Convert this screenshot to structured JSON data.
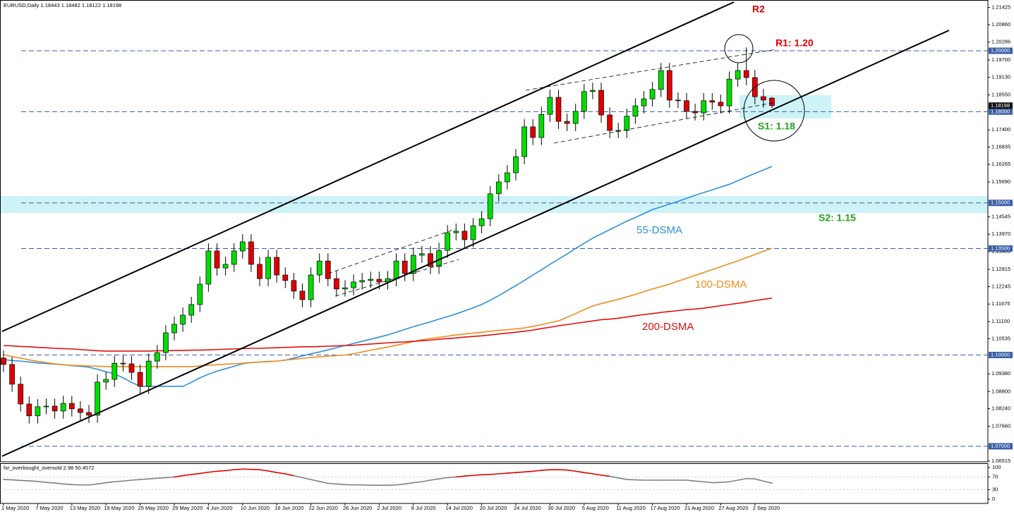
{
  "chart_data": [
    {
      "type": "candlestick",
      "title": "EURUSD,Daily 1.18443 1.18482 1.18122 1.18198",
      "categories": [
        "1 May 2020",
        null,
        null,
        null,
        "7 May 2020",
        null,
        null,
        null,
        "13 May 2020",
        null,
        null,
        null,
        "19 May 2020",
        null,
        null,
        null,
        "25 May 2020",
        null,
        null,
        null,
        "29 May 2020",
        null,
        null,
        null,
        "4 Jun 2020",
        null,
        null,
        null,
        "10 Jun 2020",
        null,
        null,
        null,
        "16 Jun 2020",
        null,
        null,
        null,
        "22 Jun 2020",
        null,
        null,
        null,
        "26 Jun 2020",
        null,
        null,
        null,
        "2 Jul 2020",
        null,
        null,
        null,
        "8 Jul 2020",
        null,
        null,
        null,
        "14 Jul 2020",
        null,
        null,
        null,
        "20 Jul 2020",
        null,
        null,
        null,
        "24 Jul 2020",
        null,
        null,
        null,
        "30 Jul 2020",
        null,
        null,
        null,
        "5 Aug 2020",
        null,
        null,
        null,
        "11 Aug 2020",
        null,
        null,
        null,
        "17 Aug 2020",
        null,
        null,
        null,
        "21 Aug 2020",
        null,
        null,
        null,
        "27 Aug 2020",
        null,
        null,
        null,
        "2 Sep 2020",
        null,
        null
      ],
      "open": [
        1.099,
        1.0969,
        1.0904,
        1.0839,
        1.08,
        1.083,
        1.0832,
        1.0816,
        1.0841,
        1.0823,
        1.0811,
        1.0802,
        1.0911,
        1.092,
        1.0973,
        1.0971,
        1.0943,
        1.0897,
        1.098,
        1.1008,
        1.1073,
        1.1101,
        1.1131,
        1.1166,
        1.1233,
        1.1342,
        1.1286,
        1.1298,
        1.1342,
        1.1372,
        1.1298,
        1.1251,
        1.1321,
        1.1263,
        1.1245,
        1.121,
        1.1182,
        1.1263,
        1.1309,
        1.1251,
        1.1217,
        1.1221,
        1.124,
        1.1245,
        1.1249,
        1.124,
        1.1251,
        1.1309,
        1.1268,
        1.1328,
        1.1333,
        1.1291,
        1.1344,
        1.1402,
        1.1407,
        1.1379,
        1.1425,
        1.1448,
        1.153,
        1.1569,
        1.1599,
        1.1652,
        1.175,
        1.1715,
        1.1791,
        1.1847,
        1.1768,
        1.1761,
        1.1801,
        1.1866,
        1.187,
        1.1789,
        1.1738,
        1.1738,
        1.1785,
        1.1819,
        1.1842,
        1.1873,
        1.1935,
        1.1838,
        1.1836,
        1.1801,
        1.1796,
        1.1836,
        1.1831,
        1.1819,
        1.1907,
        1.1935,
        1.1912,
        1.1849,
        1.18443
      ],
      "high": [
        1.1015,
        1.0994,
        1.0929,
        1.0864,
        1.0855,
        1.0857,
        1.0857,
        1.0866,
        1.0866,
        1.0848,
        1.0836,
        1.0936,
        1.0945,
        1.0998,
        1.0998,
        1.0996,
        1.0968,
        1.1005,
        1.1033,
        1.1098,
        1.1126,
        1.1156,
        1.1191,
        1.1258,
        1.1367,
        1.1367,
        1.1323,
        1.1367,
        1.1397,
        1.1397,
        1.1323,
        1.1346,
        1.1346,
        1.1288,
        1.127,
        1.1235,
        1.1288,
        1.1334,
        1.1334,
        1.1276,
        1.1246,
        1.1265,
        1.127,
        1.1274,
        1.1274,
        1.1276,
        1.1334,
        1.1334,
        1.1353,
        1.1358,
        1.1358,
        1.1369,
        1.1427,
        1.1432,
        1.1432,
        1.145,
        1.1473,
        1.1555,
        1.1594,
        1.1624,
        1.1677,
        1.1775,
        1.1775,
        1.1816,
        1.1872,
        1.1872,
        1.1793,
        1.1826,
        1.1891,
        1.1895,
        1.1895,
        1.1814,
        1.1763,
        1.181,
        1.1844,
        1.1867,
        1.1898,
        1.196,
        1.196,
        1.1863,
        1.1861,
        1.1826,
        1.1861,
        1.1861,
        1.1856,
        1.1932,
        1.196,
        1.2011,
        1.1937,
        1.1874,
        1.18482
      ],
      "low": [
        1.0944,
        1.0879,
        1.0814,
        1.0775,
        1.0775,
        1.0805,
        1.0791,
        1.0791,
        1.0798,
        1.0786,
        1.0777,
        1.0777,
        1.0886,
        1.0895,
        1.0946,
        1.0918,
        1.0872,
        1.0872,
        1.0955,
        1.0983,
        1.1048,
        1.1076,
        1.1106,
        1.1141,
        1.1208,
        1.1261,
        1.1261,
        1.1273,
        1.1317,
        1.1273,
        1.1226,
        1.1226,
        1.1238,
        1.122,
        1.1185,
        1.1157,
        1.1157,
        1.1238,
        1.1226,
        1.1192,
        1.1192,
        1.1196,
        1.1215,
        1.122,
        1.1215,
        1.1215,
        1.1226,
        1.1243,
        1.1243,
        1.1303,
        1.1266,
        1.1266,
        1.1319,
        1.1377,
        1.1354,
        1.1354,
        1.14,
        1.1423,
        1.1505,
        1.1544,
        1.1574,
        1.1627,
        1.169,
        1.169,
        1.1766,
        1.1743,
        1.1736,
        1.1736,
        1.1776,
        1.1841,
        1.1764,
        1.1713,
        1.1713,
        1.1713,
        1.176,
        1.1794,
        1.1817,
        1.1848,
        1.1813,
        1.1811,
        1.1776,
        1.1771,
        1.1771,
        1.1806,
        1.1794,
        1.1794,
        1.1882,
        1.1887,
        1.1824,
        1.1813,
        1.18122
      ],
      "close": [
        1.0969,
        1.0904,
        1.0839,
        1.08,
        1.083,
        1.0832,
        1.0816,
        1.0841,
        1.0823,
        1.0811,
        1.0802,
        1.0911,
        1.092,
        1.0973,
        1.0971,
        1.0943,
        1.0897,
        1.098,
        1.1008,
        1.1073,
        1.1101,
        1.1131,
        1.1166,
        1.1233,
        1.1342,
        1.1286,
        1.1298,
        1.1342,
        1.1372,
        1.1298,
        1.1251,
        1.1321,
        1.1263,
        1.1245,
        1.121,
        1.1182,
        1.1263,
        1.1309,
        1.1251,
        1.1217,
        1.1221,
        1.124,
        1.1245,
        1.1249,
        1.124,
        1.1251,
        1.1309,
        1.1268,
        1.1328,
        1.1333,
        1.1291,
        1.1344,
        1.1402,
        1.1407,
        1.1379,
        1.1425,
        1.1448,
        1.153,
        1.1569,
        1.1599,
        1.1652,
        1.175,
        1.1715,
        1.1791,
        1.1847,
        1.1768,
        1.1761,
        1.1801,
        1.1866,
        1.187,
        1.1789,
        1.1738,
        1.1738,
        1.1785,
        1.1819,
        1.1842,
        1.1873,
        1.1935,
        1.1838,
        1.1836,
        1.1801,
        1.1796,
        1.1836,
        1.1831,
        1.1819,
        1.1907,
        1.1935,
        1.1912,
        1.1849,
        1.1838,
        1.18198
      ],
      "up_color": "#00dd00",
      "down_color": "#e00000",
      "series": [
        {
          "name": "55-DSMA",
          "color": "#2f8fdc",
          "values": [
            1.0985,
            1.0982,
            1.098,
            1.0977,
            1.0974,
            1.0972,
            1.097,
            1.0968,
            1.0965,
            1.0963,
            1.096,
            1.0953,
            1.0945,
            1.0938,
            1.0925,
            1.091,
            1.0897,
            1.0897,
            1.0897,
            1.0897,
            1.0897,
            1.0897,
            1.091,
            1.0925,
            1.0937,
            1.0947,
            1.0955,
            1.0963,
            1.0971,
            1.0975,
            1.0977,
            1.0979,
            1.098,
            1.0983,
            1.099,
            1.0997,
            1.1004,
            1.101,
            1.1017,
            1.1024,
            1.1031,
            1.1038,
            1.1045,
            1.1052,
            1.1059,
            1.1066,
            1.1075,
            1.1084,
            1.1093,
            1.1101,
            1.1109,
            1.1118,
            1.1126,
            1.1135,
            1.1145,
            1.1155,
            1.1166,
            1.118,
            1.1195,
            1.1212,
            1.1228,
            1.1245,
            1.1263,
            1.128,
            1.1298,
            1.1315,
            1.1332,
            1.135,
            1.1367,
            1.1384,
            1.1398,
            1.1412,
            1.1426,
            1.144,
            1.1452,
            1.1465,
            1.1478,
            1.1487,
            1.1496,
            1.1505,
            1.1515,
            1.1525,
            1.1534,
            1.1543,
            1.1552,
            1.1561,
            1.1573,
            1.1585,
            1.1597,
            1.1608,
            1.162
          ]
        },
        {
          "name": "100-DSMA",
          "color": "#f08c1e",
          "values": [
            1.1001,
            1.0995,
            1.099,
            1.0984,
            1.0979,
            1.0975,
            1.0971,
            1.0968,
            1.0966,
            1.0965,
            1.0964,
            1.0963,
            1.0962,
            1.0962,
            1.0962,
            1.0962,
            1.0962,
            1.0962,
            1.0962,
            1.0962,
            1.0962,
            1.0962,
            1.0962,
            1.0964,
            1.0966,
            1.0968,
            1.097,
            1.0971,
            1.0973,
            1.0975,
            1.0977,
            1.0978,
            1.098,
            1.0983,
            1.0986,
            1.0989,
            1.0992,
            1.0994,
            1.0996,
            1.0998,
            1.1,
            1.1004,
            1.101,
            1.1016,
            1.1021,
            1.1026,
            1.1032,
            1.1038,
            1.1044,
            1.105,
            1.1054,
            1.1058,
            1.1062,
            1.1066,
            1.1069,
            1.1072,
            1.1075,
            1.1078,
            1.1081,
            1.1083,
            1.1086,
            1.1089,
            1.1094,
            1.11,
            1.1106,
            1.1112,
            1.1124,
            1.1136,
            1.1149,
            1.1161,
            1.1169,
            1.1176,
            1.1183,
            1.1191,
            1.1199,
            1.1208,
            1.1217,
            1.1225,
            1.1233,
            1.1243,
            1.1252,
            1.1262,
            1.1271,
            1.1281,
            1.129,
            1.13,
            1.1309,
            1.132,
            1.133,
            1.1341,
            1.1351
          ]
        },
        {
          "name": "200-DSMA",
          "color": "#e01010",
          "values": [
            1.1031,
            1.103,
            1.1028,
            1.1027,
            1.1025,
            1.1024,
            1.1022,
            1.1021,
            1.102,
            1.1018,
            1.1016,
            1.1014,
            1.1013,
            1.1013,
            1.1013,
            1.1013,
            1.1013,
            1.1013,
            1.1014,
            1.1014,
            1.1015,
            1.1015,
            1.1016,
            1.1016,
            1.1017,
            1.1018,
            1.1019,
            1.102,
            1.1021,
            1.1022,
            1.1022,
            1.1023,
            1.1024,
            1.1025,
            1.1026,
            1.1027,
            1.1027,
            1.1028,
            1.1029,
            1.103,
            1.1031,
            1.1032,
            1.1034,
            1.1036,
            1.1038,
            1.104,
            1.1042,
            1.1043,
            1.1045,
            1.1047,
            1.1049,
            1.1052,
            1.1054,
            1.1056,
            1.1059,
            1.1061,
            1.1063,
            1.1066,
            1.1069,
            1.1072,
            1.1075,
            1.1078,
            1.1082,
            1.1087,
            1.1091,
            1.1096,
            1.11,
            1.1104,
            1.1108,
            1.1112,
            1.1116,
            1.1118,
            1.1121,
            1.1125,
            1.1129,
            1.1133,
            1.1136,
            1.114,
            1.1143,
            1.1146,
            1.1149,
            1.1151,
            1.1154,
            1.1158,
            1.1162,
            1.1166,
            1.117,
            1.1174,
            1.1179,
            1.1183,
            1.1187
          ]
        }
      ],
      "ylim": [
        1.06489,
        1.21669
      ],
      "yticks": [
        1.21425,
        {
          "value": 1.2086,
          "label": "1.20860"
        },
        1.20286,
        {
          "value": 1.197,
          "label": "1.19700"
        },
        {
          "value": 1.1913,
          "label": "1.19130"
        },
        {
          "value": 1.1855,
          "label": "1.18550"
        },
        {
          "value": 1.174,
          "label": "1.17400"
        },
        1.16835,
        1.16265,
        {
          "value": 1.1569,
          "label": "1.15690"
        },
        1.14545,
        {
          "value": 1.1397,
          "label": "1.13970"
        },
        {
          "value": 1.134,
          "label": "1.13400"
        },
        1.12815,
        1.12245,
        1.11675,
        {
          "value": 1.111,
          "label": "1.11100"
        },
        1.10535,
        {
          "value": 1.0938,
          "label": "1.09380"
        },
        {
          "value": 1.088,
          "label": "1.08800"
        },
        {
          "value": 1.0824,
          "label": "1.08240"
        },
        {
          "value": 1.0766,
          "label": "1.07660"
        },
        1.06515
      ],
      "levels": [
        {
          "value": 1.2,
          "label": "1.20000"
        },
        {
          "value": 1.18,
          "label": "1.18000"
        },
        {
          "value": 1.15,
          "label": "1.15000"
        },
        {
          "value": 1.135,
          "label": "1.13500"
        },
        {
          "value": 1.1,
          "label": "1.10000"
        },
        {
          "value": 1.07,
          "label": "1.07000"
        }
      ],
      "level_color": "#3a5fa8",
      "last_price": 1.18198,
      "annotations": [
        {
          "text": "R2",
          "color": "#e00000"
        },
        {
          "text": "R1: 1.20",
          "color": "#e00000"
        },
        {
          "text": "S1: 1.18",
          "color": "#1fa51f"
        },
        {
          "text": "S2: 1.15",
          "color": "#1fa51f"
        }
      ]
    },
    {
      "type": "line",
      "title": "fxr_overbought_oversold 2.98 50.4572",
      "values": [
        62,
        61,
        59,
        58,
        56,
        53,
        51,
        48,
        46,
        45,
        45,
        48,
        52,
        55,
        57,
        60,
        62,
        64,
        66,
        68,
        70,
        74,
        78,
        81,
        85,
        88,
        90,
        93,
        95,
        94,
        93,
        89,
        84,
        80,
        74,
        68,
        62,
        56,
        50,
        48,
        46,
        45,
        45,
        44,
        44,
        44,
        45,
        48,
        52,
        55,
        60,
        64,
        68,
        70,
        73,
        75,
        77,
        78,
        80,
        82,
        84,
        86,
        88,
        91,
        93,
        93,
        92,
        88,
        84,
        80,
        76,
        72,
        67,
        62,
        61,
        60,
        60,
        60,
        60,
        60,
        60,
        57,
        55,
        52,
        53,
        55,
        60,
        65,
        64,
        57,
        50.4572
      ],
      "color": "#808080",
      "highlight_color": "#e00000",
      "highlight_above": 70,
      "ylim": [
        -13.3,
        113.3
      ],
      "yticks": [
        100,
        70,
        30,
        0
      ]
    }
  ]
}
